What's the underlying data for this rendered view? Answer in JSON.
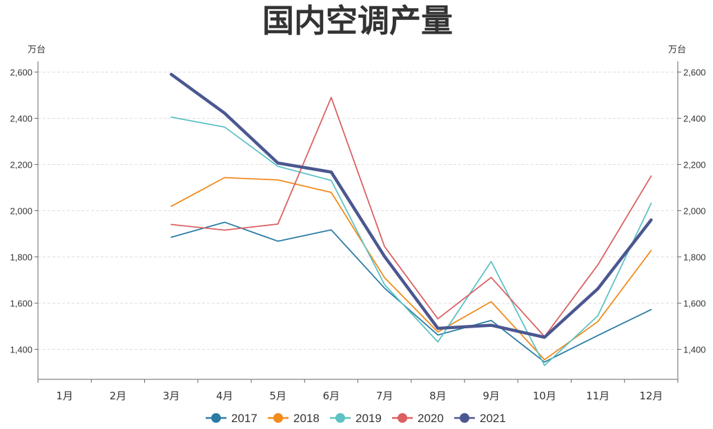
{
  "chart_data": {
    "type": "line",
    "title": "国内空调产量",
    "unit_left": "万台",
    "unit_right": "万台",
    "categories": [
      "1月",
      "2月",
      "3月",
      "4月",
      "5月",
      "6月",
      "7月",
      "8月",
      "9月",
      "10月",
      "11月",
      "12月"
    ],
    "ylim": [
      1270,
      2660
    ],
    "yticks": [
      1400,
      1600,
      1800,
      2000,
      2200,
      2400,
      2600
    ],
    "ytick_labels": [
      "1,400",
      "1,600",
      "1,800",
      "2,000",
      "2,200",
      "2,400",
      "2,600"
    ],
    "grid": true,
    "legend_position": "bottom",
    "series": [
      {
        "name": "2017",
        "color": "#2a7ca5",
        "values": [
          null,
          null,
          1885,
          1950,
          1868,
          1917,
          1665,
          1462,
          1525,
          1345,
          1460,
          1572
        ]
      },
      {
        "name": "2018",
        "color": "#f28a1c",
        "values": [
          null,
          null,
          2019,
          2143,
          2133,
          2079,
          1710,
          1475,
          1606,
          1355,
          1520,
          1828
        ]
      },
      {
        "name": "2019",
        "color": "#5ec1c4",
        "values": [
          null,
          null,
          2405,
          2362,
          2192,
          2131,
          1680,
          1432,
          1780,
          1330,
          1545,
          2032
        ]
      },
      {
        "name": "2020",
        "color": "#db5f62",
        "values": [
          null,
          null,
          1940,
          1916,
          1942,
          2490,
          1845,
          1532,
          1711,
          1455,
          1765,
          2150
        ]
      },
      {
        "name": "2021",
        "color": "#4b5790",
        "values": [
          null,
          null,
          2590,
          2422,
          2206,
          2167,
          1802,
          1491,
          1504,
          1452,
          1662,
          1960
        ]
      }
    ]
  }
}
